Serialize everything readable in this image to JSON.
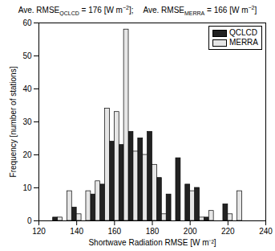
{
  "chart_data": {
    "type": "histogram",
    "title": [
      [
        {
          "text": "Ave. RMSE"
        },
        {
          "sub": "QCLCD"
        },
        {
          "text": " = 176 [W m"
        },
        {
          "sup": "−2"
        },
        {
          "text": "];"
        }
      ],
      [
        {
          "text": "Ave. RMSE"
        },
        {
          "sub": "MERRA"
        },
        {
          "text": " = 166 [W m"
        },
        {
          "sup": "−2"
        },
        {
          "text": "]"
        }
      ]
    ],
    "x_label": "Shortwave Radiation RMSE [W m⁻²]",
    "y_label": "Frequency [number of stations]",
    "bins": [
      127.5,
      132.5,
      137.5,
      142.5,
      147.5,
      152.5,
      157.5,
      162.5,
      167.5,
      172.5,
      177.5,
      182.5,
      187.5,
      192.5,
      197.5,
      202.5,
      207.5,
      212.5,
      217.5,
      222.5,
      227.5
    ],
    "series": [
      {
        "name": "QCLCD",
        "color": "#222222",
        "values": [
          1,
          0,
          4,
          0,
          8,
          11,
          24,
          23,
          27,
          25,
          27,
          13,
          8,
          19,
          11,
          10,
          1,
          0,
          5,
          0
        ]
      },
      {
        "name": "MERRA",
        "color": "#e6e6e6",
        "values": [
          1,
          9,
          2,
          9,
          12,
          34,
          33,
          58,
          21,
          20,
          17,
          2,
          0,
          0,
          9,
          1,
          3,
          0,
          2,
          9
        ]
      }
    ],
    "xlim": [
      120,
      240
    ],
    "xticks": [
      120,
      140,
      160,
      180,
      200,
      220,
      240
    ],
    "ylim": [
      0,
      60
    ],
    "yticks": [
      0,
      10,
      20,
      30,
      40,
      50,
      60
    ],
    "grid": false,
    "legend": "top-right"
  }
}
